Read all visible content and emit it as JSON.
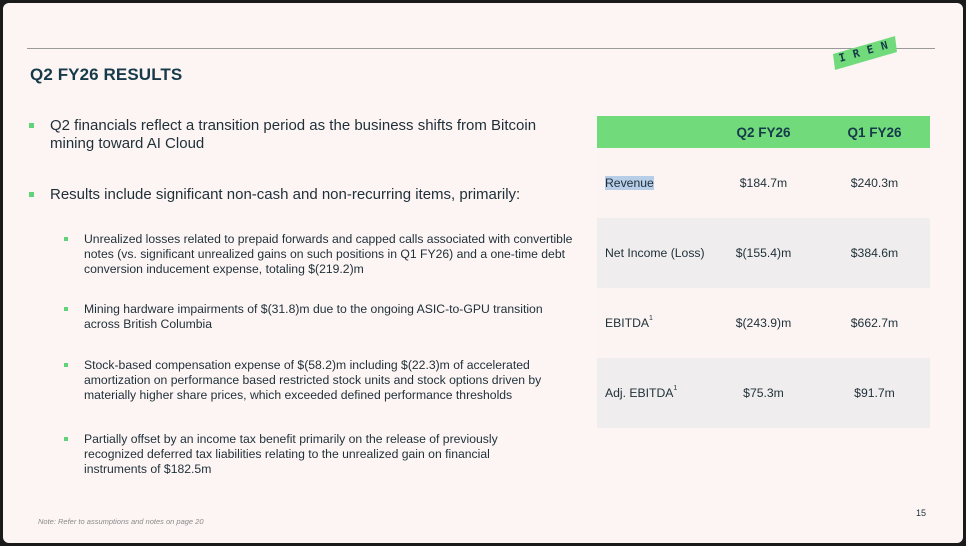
{
  "slide": {
    "title": "Q2 FY26 RESULTS",
    "logo_text": "IREN",
    "page_number": "15",
    "note": "Note: Refer to assumptions and notes on page 20"
  },
  "bullets": [
    {
      "level": 1,
      "text": "Q2 financials reflect a transition period as the business shifts from Bitcoin mining toward AI Cloud"
    },
    {
      "level": 1,
      "text": "Results include significant non-cash and non-recurring items, primarily:"
    },
    {
      "level": 2,
      "text": "Unrealized losses related to prepaid forwards and capped calls associated with convertible notes (vs. significant unrealized gains on such positions in Q1 FY26) and a one-time debt conversion inducement expense, totaling $(219.2)m"
    },
    {
      "level": 2,
      "text": "Mining hardware impairments of $(31.8)m due to the ongoing ASIC-to-GPU transition across British Columbia"
    },
    {
      "level": 2,
      "text": "Stock-based compensation expense of $(58.2)m including $(22.3)m of accelerated amortization on performance based restricted stock units and stock options driven by materially higher share prices, which exceeded defined performance thresholds"
    },
    {
      "level": 2,
      "text": "Partially offset by an income tax benefit primarily on the release of previously recognized deferred tax liabilities relating to the unrealized gain on financial instruments of $182.5m"
    }
  ],
  "table": {
    "columns": [
      "",
      "Q2 FY26",
      "Q1 FY26"
    ],
    "rows": [
      {
        "metric": "Revenue",
        "sup": "",
        "q2": "$184.7m",
        "q1": "$240.3m"
      },
      {
        "metric": "Net Income (Loss)",
        "sup": "",
        "q2": "$(155.4)m",
        "q1": "$384.6m"
      },
      {
        "metric": "EBITDA",
        "sup": "1",
        "q2": "$(243.9)m",
        "q1": "$662.7m"
      },
      {
        "metric": "Adj. EBITDA",
        "sup": "1",
        "q2": "$75.3m",
        "q1": "$91.7m"
      }
    ]
  },
  "colors": {
    "accent_green": "#71db7c",
    "title_navy": "#163a4a",
    "background": "#fcf5f4"
  }
}
